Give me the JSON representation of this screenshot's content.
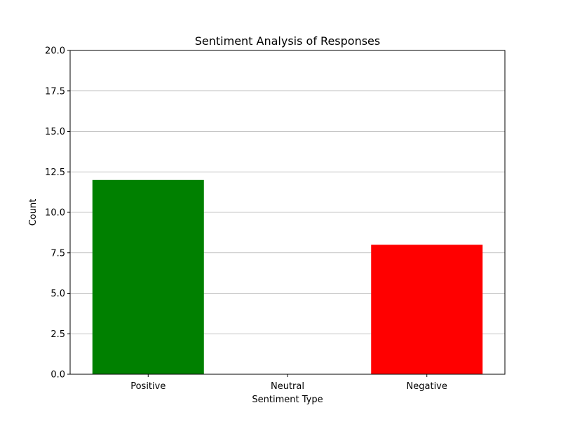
{
  "chart_data": {
    "type": "bar",
    "title": "Sentiment Analysis of Responses",
    "xlabel": "Sentiment Type",
    "ylabel": "Count",
    "categories": [
      "Positive",
      "Neutral",
      "Negative"
    ],
    "values": [
      12,
      0,
      8
    ],
    "bar_colors": [
      "#008000",
      "#ffffff",
      "#ff0000"
    ],
    "ylim": [
      0,
      20
    ],
    "yticks": [
      "0.0",
      "2.5",
      "5.0",
      "7.5",
      "10.0",
      "12.5",
      "15.0",
      "17.5",
      "20.0"
    ],
    "grid": "y-axis",
    "legend": "none"
  }
}
